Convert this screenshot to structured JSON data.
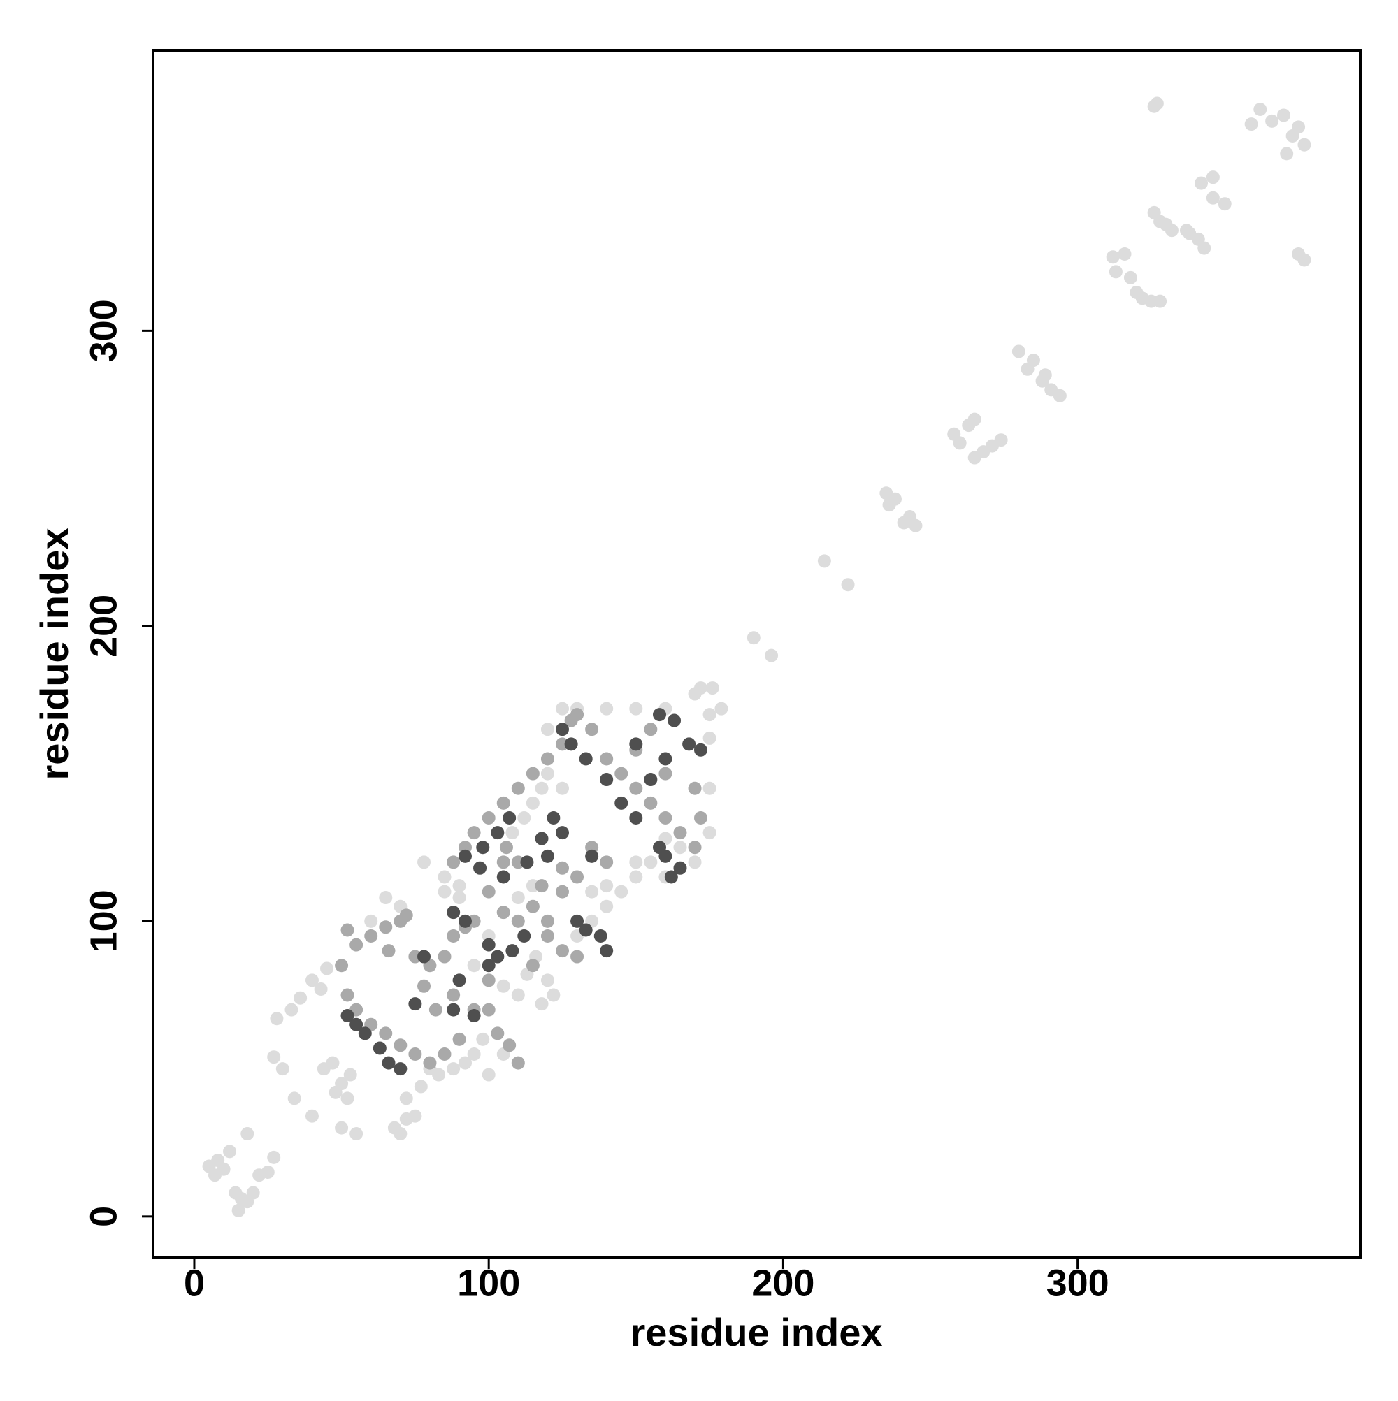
{
  "chart_data": {
    "type": "scatter",
    "xlabel": "residue index",
    "ylabel": "residue index",
    "xlim": [
      -14,
      396
    ],
    "ylim": [
      -14,
      395
    ],
    "xticks": [
      0,
      100,
      200,
      300
    ],
    "yticks": [
      0,
      100,
      200,
      300
    ],
    "grid": false,
    "series": [
      {
        "color": "#dcdcdc",
        "x": [
          327,
          326,
          362,
          366,
          370,
          375,
          373,
          377,
          371,
          359,
          346,
          342,
          350,
          346,
          338,
          341,
          343,
          337,
          326,
          328,
          330,
          332,
          316,
          312,
          313,
          318,
          322,
          325,
          328,
          320,
          375,
          377,
          280,
          285,
          283,
          288,
          291,
          294,
          289,
          258,
          263,
          265,
          260,
          265,
          268,
          271,
          274,
          235,
          238,
          236,
          243,
          245,
          241,
          214,
          222,
          190,
          196,
          172,
          176,
          179,
          175,
          5,
          8,
          7,
          10,
          12,
          14,
          16,
          18,
          15,
          20,
          22,
          18,
          27,
          25,
          27,
          30,
          28,
          33,
          36,
          40,
          34,
          40,
          44,
          47,
          50,
          52,
          48,
          43,
          45,
          50,
          55,
          53,
          68,
          70,
          72,
          77,
          75,
          72,
          80,
          83,
          78,
          85,
          90,
          115,
          118,
          120,
          125,
          112,
          108,
          113,
          116,
          120,
          118,
          122,
          130,
          135,
          140,
          145,
          150,
          155,
          160,
          98,
          95,
          92,
          88,
          100,
          105,
          70,
          65,
          60,
          135,
          140,
          110,
          115,
          150,
          160,
          165,
          175,
          170,
          175,
          85,
          90,
          110,
          105,
          100,
          95,
          120,
          125,
          130,
          140,
          150,
          160,
          170,
          175
        ],
        "values": [
          377,
          376,
          375,
          371,
          373,
          369,
          366,
          363,
          360,
          370,
          352,
          350,
          343,
          345,
          333,
          331,
          328,
          334,
          340,
          337,
          336,
          334,
          326,
          325,
          320,
          318,
          311,
          310,
          310,
          313,
          326,
          324,
          293,
          290,
          287,
          283,
          280,
          278,
          285,
          265,
          268,
          270,
          262,
          257,
          259,
          261,
          263,
          245,
          243,
          241,
          237,
          234,
          235,
          222,
          214,
          196,
          190,
          179,
          179,
          172,
          170,
          17,
          19,
          14,
          16,
          22,
          8,
          6,
          5,
          2,
          8,
          14,
          28,
          20,
          15,
          54,
          50,
          67,
          70,
          74,
          80,
          40,
          34,
          50,
          52,
          45,
          40,
          42,
          77,
          84,
          30,
          28,
          48,
          30,
          28,
          40,
          44,
          34,
          33,
          50,
          48,
          120,
          115,
          112,
          140,
          145,
          150,
          145,
          135,
          130,
          82,
          88,
          80,
          72,
          75,
          95,
          100,
          105,
          110,
          115,
          120,
          128,
          60,
          55,
          52,
          50,
          48,
          55,
          105,
          108,
          100,
          110,
          112,
          108,
          112,
          120,
          115,
          125,
          130,
          120,
          145,
          110,
          108,
          75,
          78,
          95,
          85,
          165,
          172,
          172,
          172,
          172,
          172,
          177,
          162
        ]
      },
      {
        "color": "#a9a9a9",
        "x": [
          50,
          52,
          55,
          60,
          65,
          70,
          66,
          72,
          75,
          80,
          85,
          88,
          92,
          95,
          100,
          105,
          110,
          115,
          120,
          125,
          130,
          88,
          92,
          95,
          100,
          105,
          110,
          115,
          120,
          125,
          128,
          130,
          135,
          140,
          145,
          150,
          155,
          160,
          165,
          170,
          172,
          170,
          160,
          155,
          150,
          140,
          135,
          130,
          125,
          118,
          110,
          106,
          100,
          95,
          90,
          85,
          80,
          75,
          70,
          65,
          60,
          55,
          52,
          100,
          103,
          107,
          110,
          120,
          115,
          125,
          105,
          88,
          82,
          78
        ],
        "values": [
          85,
          97,
          92,
          95,
          98,
          100,
          90,
          102,
          88,
          85,
          88,
          95,
          98,
          100,
          110,
          103,
          100,
          105,
          95,
          90,
          88,
          120,
          125,
          130,
          135,
          140,
          145,
          150,
          155,
          160,
          168,
          170,
          165,
          155,
          150,
          145,
          140,
          135,
          130,
          125,
          135,
          145,
          150,
          165,
          158,
          120,
          125,
          115,
          118,
          112,
          120,
          125,
          80,
          70,
          60,
          55,
          52,
          55,
          58,
          62,
          65,
          70,
          75,
          70,
          62,
          58,
          52,
          100,
          85,
          110,
          120,
          75,
          70,
          78
        ]
      },
      {
        "color": "#4f4f4f",
        "x": [
          52,
          55,
          58,
          63,
          66,
          70,
          75,
          78,
          88,
          92,
          100,
          103,
          108,
          112,
          120,
          122,
          125,
          130,
          133,
          138,
          140,
          125,
          128,
          133,
          140,
          145,
          150,
          158,
          160,
          162,
          165,
          158,
          163,
          168,
          172,
          160,
          90,
          88,
          95,
          100,
          105,
          113,
          118,
          135,
          92,
          97,
          98,
          103,
          107,
          150,
          155
        ],
        "values": [
          68,
          65,
          62,
          57,
          52,
          50,
          72,
          88,
          103,
          100,
          92,
          88,
          90,
          95,
          122,
          135,
          130,
          100,
          97,
          95,
          90,
          165,
          160,
          155,
          148,
          140,
          135,
          125,
          122,
          115,
          118,
          170,
          168,
          160,
          158,
          155,
          80,
          70,
          68,
          85,
          115,
          120,
          128,
          122,
          122,
          118,
          125,
          130,
          135,
          160,
          148
        ]
      }
    ]
  }
}
